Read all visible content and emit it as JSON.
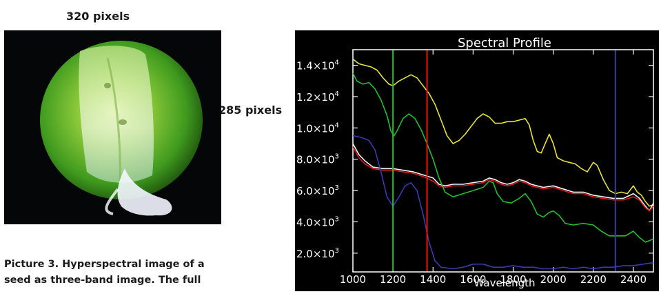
{
  "labels": {
    "width": "320 pixels",
    "height": "285 pixels"
  },
  "caption": {
    "line1": "Picture 3. Hyperspectral image of a",
    "line2": "seed as three-band image. The full"
  },
  "chart_data": {
    "type": "line",
    "title": "Spectral Profile",
    "xlabel": "Wavelength",
    "ylabel": "",
    "xlim": [
      1000,
      2500
    ],
    "ylim": [
      800,
      15000
    ],
    "xticks": [
      1000,
      1200,
      1400,
      1600,
      1800,
      2000,
      2200,
      2400
    ],
    "xtick_labels": [
      "1000",
      "1200",
      "1400",
      "1600",
      "1800",
      "2000",
      "2200",
      "2400"
    ],
    "yticks": [
      2000,
      4000,
      6000,
      8000,
      10000,
      12000,
      14000
    ],
    "ytick_labels": [
      "2.0×10",
      "4.0×10",
      "6.0×10",
      "8.0×10",
      "1.0×10",
      "1.2×10",
      "1.4×10"
    ],
    "ytick_exponents": [
      "3",
      "3",
      "3",
      "3",
      "4",
      "4",
      "4"
    ],
    "grid": false,
    "vertical_markers": [
      {
        "x": 1200,
        "color": "#22c02c"
      },
      {
        "x": 1370,
        "color": "#e01818"
      },
      {
        "x": 2310,
        "color": "#3a3ab0"
      }
    ],
    "series": [
      {
        "color": "#e8e23a",
        "points": [
          [
            1000,
            14400
          ],
          [
            1030,
            14100
          ],
          [
            1060,
            14000
          ],
          [
            1090,
            13900
          ],
          [
            1120,
            13700
          ],
          [
            1150,
            13200
          ],
          [
            1180,
            12800
          ],
          [
            1200,
            12700
          ],
          [
            1230,
            13000
          ],
          [
            1260,
            13200
          ],
          [
            1290,
            13400
          ],
          [
            1320,
            13200
          ],
          [
            1350,
            12700
          ],
          [
            1380,
            12200
          ],
          [
            1410,
            11500
          ],
          [
            1440,
            10500
          ],
          [
            1470,
            9500
          ],
          [
            1500,
            9000
          ],
          [
            1530,
            9200
          ],
          [
            1560,
            9600
          ],
          [
            1590,
            10100
          ],
          [
            1620,
            10600
          ],
          [
            1650,
            10900
          ],
          [
            1680,
            10700
          ],
          [
            1710,
            10300
          ],
          [
            1740,
            10300
          ],
          [
            1770,
            10400
          ],
          [
            1800,
            10400
          ],
          [
            1830,
            10500
          ],
          [
            1860,
            10600
          ],
          [
            1880,
            10200
          ],
          [
            1900,
            9200
          ],
          [
            1920,
            8500
          ],
          [
            1940,
            8400
          ],
          [
            1960,
            9000
          ],
          [
            1980,
            9600
          ],
          [
            2000,
            9000
          ],
          [
            2020,
            8100
          ],
          [
            2050,
            7900
          ],
          [
            2080,
            7800
          ],
          [
            2110,
            7700
          ],
          [
            2140,
            7400
          ],
          [
            2170,
            7200
          ],
          [
            2200,
            7800
          ],
          [
            2220,
            7600
          ],
          [
            2250,
            6700
          ],
          [
            2280,
            6000
          ],
          [
            2310,
            5800
          ],
          [
            2340,
            5900
          ],
          [
            2370,
            5800
          ],
          [
            2400,
            6300
          ],
          [
            2420,
            5900
          ],
          [
            2440,
            5700
          ],
          [
            2460,
            5300
          ],
          [
            2480,
            5000
          ],
          [
            2500,
            5100
          ]
        ]
      },
      {
        "color": "#f2f2f2",
        "points": [
          [
            1000,
            9000
          ],
          [
            1030,
            8300
          ],
          [
            1060,
            7900
          ],
          [
            1100,
            7500
          ],
          [
            1150,
            7400
          ],
          [
            1200,
            7400
          ],
          [
            1250,
            7300
          ],
          [
            1300,
            7200
          ],
          [
            1350,
            7000
          ],
          [
            1400,
            6800
          ],
          [
            1430,
            6400
          ],
          [
            1460,
            6300
          ],
          [
            1500,
            6400
          ],
          [
            1550,
            6400
          ],
          [
            1600,
            6500
          ],
          [
            1650,
            6600
          ],
          [
            1680,
            6800
          ],
          [
            1710,
            6700
          ],
          [
            1740,
            6500
          ],
          [
            1770,
            6400
          ],
          [
            1800,
            6500
          ],
          [
            1830,
            6700
          ],
          [
            1860,
            6600
          ],
          [
            1890,
            6400
          ],
          [
            1920,
            6300
          ],
          [
            1950,
            6200
          ],
          [
            2000,
            6300
          ],
          [
            2050,
            6100
          ],
          [
            2100,
            5900
          ],
          [
            2150,
            5900
          ],
          [
            2200,
            5700
          ],
          [
            2250,
            5600
          ],
          [
            2300,
            5500
          ],
          [
            2350,
            5500
          ],
          [
            2400,
            5800
          ],
          [
            2430,
            5500
          ],
          [
            2460,
            5000
          ],
          [
            2480,
            4700
          ],
          [
            2500,
            5200
          ]
        ]
      },
      {
        "color": "#e01818",
        "points": [
          [
            1000,
            8800
          ],
          [
            1030,
            8100
          ],
          [
            1060,
            7700
          ],
          [
            1100,
            7400
          ],
          [
            1150,
            7300
          ],
          [
            1200,
            7300
          ],
          [
            1250,
            7200
          ],
          [
            1300,
            7100
          ],
          [
            1350,
            6900
          ],
          [
            1400,
            6600
          ],
          [
            1430,
            6300
          ],
          [
            1460,
            6200
          ],
          [
            1500,
            6300
          ],
          [
            1550,
            6300
          ],
          [
            1600,
            6400
          ],
          [
            1650,
            6500
          ],
          [
            1680,
            6700
          ],
          [
            1710,
            6600
          ],
          [
            1740,
            6400
          ],
          [
            1770,
            6300
          ],
          [
            1800,
            6400
          ],
          [
            1830,
            6600
          ],
          [
            1860,
            6500
          ],
          [
            1890,
            6300
          ],
          [
            1920,
            6200
          ],
          [
            1950,
            6100
          ],
          [
            2000,
            6200
          ],
          [
            2050,
            6000
          ],
          [
            2100,
            5800
          ],
          [
            2150,
            5800
          ],
          [
            2200,
            5600
          ],
          [
            2250,
            5500
          ],
          [
            2300,
            5400
          ],
          [
            2350,
            5400
          ],
          [
            2400,
            5600
          ],
          [
            2430,
            5400
          ],
          [
            2460,
            4900
          ],
          [
            2480,
            4700
          ],
          [
            2500,
            5000
          ]
        ]
      },
      {
        "color": "#22c02c",
        "points": [
          [
            1000,
            13500
          ],
          [
            1020,
            13000
          ],
          [
            1050,
            12800
          ],
          [
            1080,
            12900
          ],
          [
            1110,
            12500
          ],
          [
            1140,
            11800
          ],
          [
            1170,
            10800
          ],
          [
            1190,
            9800
          ],
          [
            1205,
            9500
          ],
          [
            1220,
            9800
          ],
          [
            1250,
            10600
          ],
          [
            1280,
            10900
          ],
          [
            1310,
            10600
          ],
          [
            1340,
            9900
          ],
          [
            1370,
            9000
          ],
          [
            1400,
            8000
          ],
          [
            1430,
            6800
          ],
          [
            1460,
            5900
          ],
          [
            1500,
            5600
          ],
          [
            1550,
            5800
          ],
          [
            1600,
            6000
          ],
          [
            1650,
            6200
          ],
          [
            1680,
            6600
          ],
          [
            1700,
            6500
          ],
          [
            1720,
            5800
          ],
          [
            1750,
            5300
          ],
          [
            1790,
            5200
          ],
          [
            1830,
            5500
          ],
          [
            1860,
            5800
          ],
          [
            1890,
            5300
          ],
          [
            1920,
            4500
          ],
          [
            1950,
            4300
          ],
          [
            1980,
            4600
          ],
          [
            2000,
            4700
          ],
          [
            2030,
            4400
          ],
          [
            2060,
            3900
          ],
          [
            2100,
            3800
          ],
          [
            2150,
            3900
          ],
          [
            2200,
            3800
          ],
          [
            2240,
            3400
          ],
          [
            2280,
            3100
          ],
          [
            2320,
            3100
          ],
          [
            2360,
            3100
          ],
          [
            2400,
            3400
          ],
          [
            2430,
            3000
          ],
          [
            2460,
            2700
          ],
          [
            2500,
            2900
          ]
        ]
      },
      {
        "color": "#3a3ab0",
        "points": [
          [
            1000,
            9500
          ],
          [
            1040,
            9400
          ],
          [
            1080,
            9200
          ],
          [
            1110,
            8600
          ],
          [
            1140,
            7200
          ],
          [
            1170,
            5600
          ],
          [
            1200,
            5000
          ],
          [
            1230,
            5600
          ],
          [
            1260,
            6300
          ],
          [
            1290,
            6500
          ],
          [
            1320,
            6000
          ],
          [
            1350,
            4500
          ],
          [
            1380,
            2700
          ],
          [
            1410,
            1500
          ],
          [
            1440,
            1100
          ],
          [
            1500,
            1000
          ],
          [
            1550,
            1100
          ],
          [
            1600,
            1300
          ],
          [
            1650,
            1300
          ],
          [
            1700,
            1100
          ],
          [
            1750,
            1100
          ],
          [
            1800,
            1200
          ],
          [
            1850,
            1100
          ],
          [
            1900,
            1100
          ],
          [
            1950,
            1000
          ],
          [
            2000,
            1000
          ],
          [
            2050,
            1100
          ],
          [
            2100,
            1000
          ],
          [
            2150,
            1100
          ],
          [
            2200,
            1000
          ],
          [
            2250,
            1100
          ],
          [
            2300,
            1100
          ],
          [
            2350,
            1200
          ],
          [
            2400,
            1200
          ],
          [
            2450,
            1300
          ],
          [
            2500,
            1400
          ]
        ]
      }
    ]
  }
}
